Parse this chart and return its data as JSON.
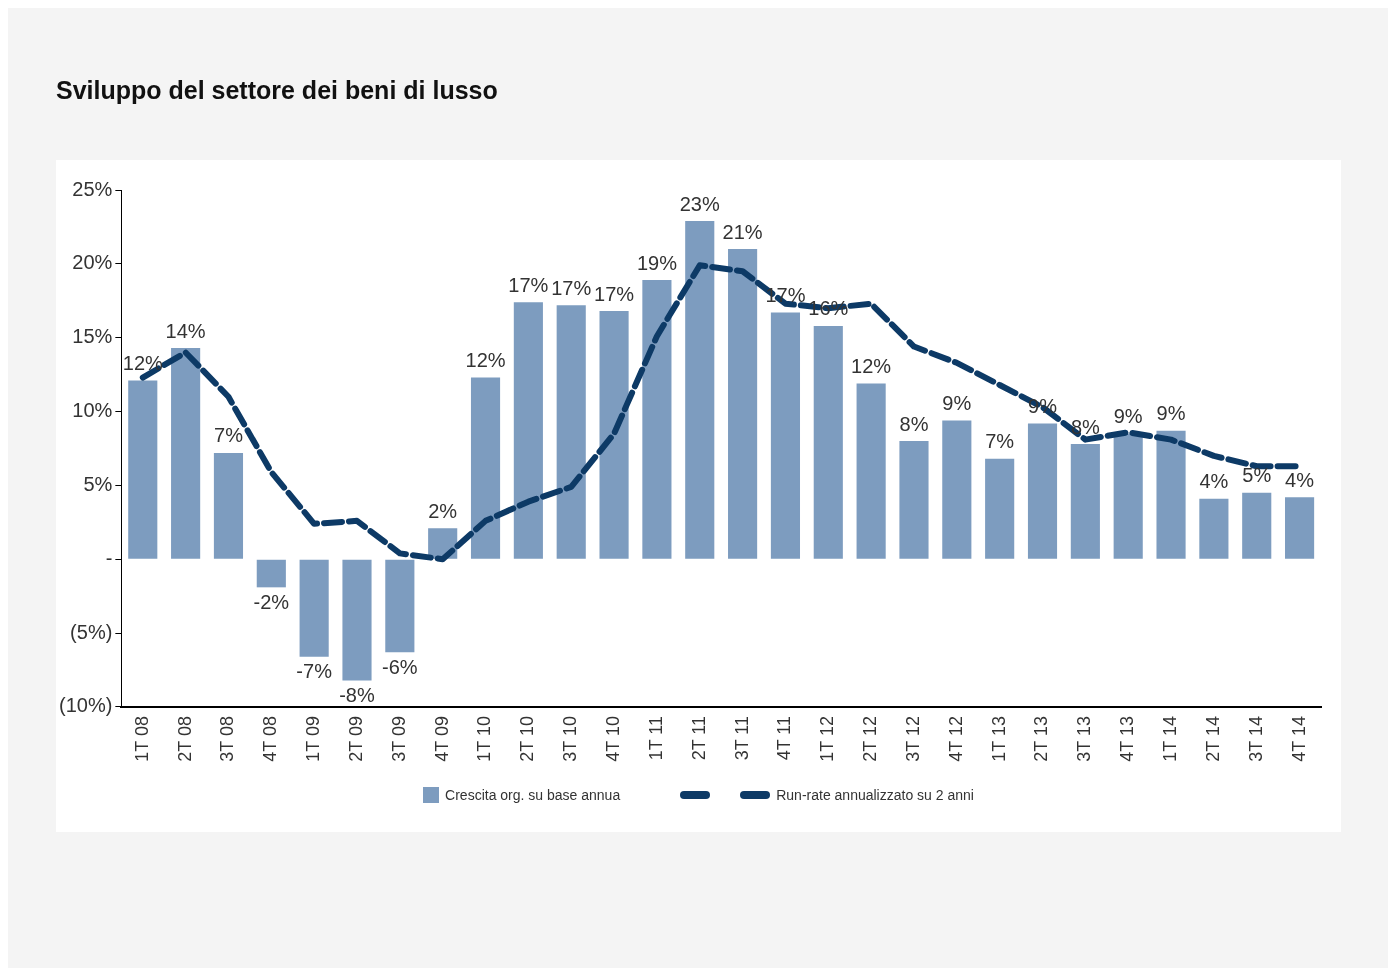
{
  "chart_data": {
    "type": "bar",
    "title": "Sviluppo del settore dei beni di lusso",
    "categories": [
      "1T 08",
      "2T 08",
      "3T 08",
      "4T 08",
      "1T 09",
      "2T 09",
      "3T 09",
      "4T 09",
      "1T 10",
      "2T 10",
      "3T 10",
      "4T 10",
      "1T 11",
      "2T 11",
      "3T 11",
      "4T 11",
      "1T 12",
      "2T 12",
      "3T 12",
      "4T 12",
      "1T 13",
      "2T 13",
      "3T 13",
      "4T 13",
      "1T 14",
      "2T 14",
      "3T 14",
      "4T 14"
    ],
    "series": [
      {
        "name": "Crescita org. su base annua",
        "color": "#7d9cbf",
        "values": [
          12.1,
          14.3,
          7.2,
          -1.9,
          -6.6,
          -8.2,
          -6.3,
          2.1,
          12.3,
          17.4,
          17.2,
          16.8,
          18.9,
          22.9,
          21.0,
          16.7,
          15.8,
          11.9,
          8.0,
          9.4,
          6.8,
          9.2,
          7.8,
          8.5,
          8.7,
          4.1,
          4.5,
          4.2
        ],
        "value_labels": [
          "12%",
          "14%",
          "7%",
          "-2%",
          "-7%",
          "-8%",
          "-6%",
          "2%",
          "12%",
          "17%",
          "17%",
          "17%",
          "19%",
          "23%",
          "21%",
          "17%",
          "16%",
          "12%",
          "8%",
          "9%",
          "7%",
          "9%",
          "8%",
          "9%",
          "9%",
          "4%",
          "5%",
          "4%"
        ]
      },
      {
        "name": "Run-rate annualizzato su 2 anni",
        "type": "line",
        "color": "#0d3a66",
        "line_style": "dashed",
        "marker": "none",
        "values": [
          12.3,
          14.0,
          11.0,
          5.9,
          2.4,
          2.6,
          0.4,
          0.0,
          2.6,
          3.9,
          4.9,
          8.5,
          15.1,
          19.9,
          19.5,
          17.3,
          17.0,
          17.3,
          14.4,
          13.3,
          11.8,
          10.3,
          8.1,
          8.6,
          8.1,
          7.0,
          6.3,
          6.3
        ]
      }
    ],
    "ylim": [
      -10,
      25
    ],
    "yticks": [
      {
        "value": -10,
        "label": "(10%)"
      },
      {
        "value": -5,
        "label": "(5%)"
      },
      {
        "value": 0,
        "label": "-"
      },
      {
        "value": 5,
        "label": "5%"
      },
      {
        "value": 10,
        "label": "10%"
      },
      {
        "value": 15,
        "label": "15%"
      },
      {
        "value": 20,
        "label": "20%"
      },
      {
        "value": 25,
        "label": "25%"
      }
    ],
    "grid": false,
    "legend": "bottom"
  }
}
